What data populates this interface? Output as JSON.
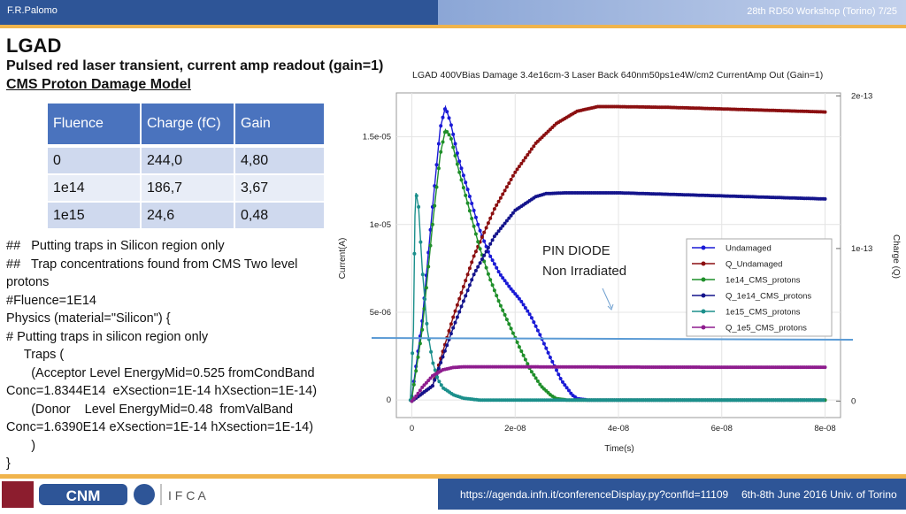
{
  "header": {
    "author": "F.R.Palomo",
    "page_info": "28th RD50 Workshop (Torino) 7/25"
  },
  "slide": {
    "title": "LGAD",
    "subtitle": "Pulsed red laser transient, current amp readout (gain=1)",
    "subtitle2": "CMS Proton Damage Model"
  },
  "table": {
    "headers": [
      "Fluence",
      "Charge (fC)",
      "Gain"
    ],
    "rows": [
      [
        "0",
        "244,0",
        "4,80"
      ],
      [
        "1e14",
        "186,7",
        "3,67"
      ],
      [
        "1e15",
        "24,6",
        "0,48"
      ]
    ]
  },
  "code_lines": [
    "##   Putting traps in Silicon region only",
    "##   Trap concentrations found from CMS Two level",
    "protons",
    "#Fluence=1E14",
    "Physics (material=\"Silicon\") {",
    "# Putting traps in silicon region only",
    "     Traps (",
    "       (Acceptor Level EnergyMid=0.525 fromCondBand",
    "Conc=1.8344E14  eXsection=1E-14 hXsection=1E-14)",
    "       (Donor    Level EnergyMid=0.48  fromValBand",
    "Conc=1.6390E14 eXsection=1E-14 hXsection=1E-14)",
    "       )",
    "}"
  ],
  "footer": {
    "url": "https://agenda.infn.it/conferenceDisplay.py?confId=11109",
    "date": "6th-8th June  2016  Univ. of Torino",
    "logo_text": "CNM"
  },
  "annotation": {
    "line1": "PIN DIODE",
    "line2": "Non  Irradiated"
  },
  "chart_data": {
    "type": "line",
    "title": "LGAD 400VBias Damage 3.4e16cm-3 Laser Back 640nm50ps1e4W/cm2 CurrentAmp Out (Gain=1)",
    "xlabel": "Time(s)",
    "ylabel": "Current(A)",
    "y2label": "Charge (Q)",
    "xlim": [
      -3e-09,
      8.3e-08
    ],
    "ylim": [
      -1e-06,
      1.75e-05
    ],
    "y2lim": [
      -1.08e-14,
      2.02e-13
    ],
    "x_ticks": [
      0,
      2e-08,
      4e-08,
      6e-08,
      8e-08
    ],
    "x_tick_labels": [
      "0",
      "2e-08",
      "4e-08",
      "6e-08",
      "8e-08"
    ],
    "y_ticks": [
      0,
      5e-06,
      1e-05,
      1.5e-05
    ],
    "y_tick_labels": [
      "0",
      "5e-06",
      "1e-05",
      "1.5e-05"
    ],
    "y2_ticks": [
      0,
      1e-13,
      2e-13
    ],
    "y2_tick_labels": [
      "0",
      "1e-13",
      "2e-13"
    ],
    "series": [
      {
        "name": "Undamaged",
        "axis": "left",
        "color": "#1a1ad6",
        "x": [
          0,
          2e-09,
          4e-09,
          5.5e-09,
          6.5e-09,
          7.5e-09,
          9e-09,
          1.1e-08,
          1.3e-08,
          1.5e-08,
          1.7e-08,
          1.9e-08,
          2.1e-08,
          2.3e-08,
          2.5e-08,
          2.7e-08,
          2.9e-08,
          3.1e-08,
          3.2e-08,
          3.4e-08,
          8e-08
        ],
        "values": [
          2e-07,
          4.5e-06,
          1.1e-05,
          1.55e-05,
          1.67e-05,
          1.58e-05,
          1.38e-05,
          1.18e-05,
          9.8e-06,
          8.3e-06,
          7.2e-06,
          6.4e-06,
          5.7e-06,
          4.8e-06,
          3.6e-06,
          2.3e-06,
          1.1e-06,
          3e-07,
          8e-08,
          0,
          0
        ]
      },
      {
        "name": "Q_Undamaged",
        "axis": "right",
        "color": "#8b0f10",
        "x": [
          0,
          4e-09,
          8e-09,
          1.2e-08,
          1.6e-08,
          2e-08,
          2.4e-08,
          2.8e-08,
          3.2e-08,
          3.6e-08,
          4e-08,
          5e-08,
          6e-08,
          7e-08,
          8e-08
        ],
        "values": [
          0,
          1e-14,
          5.5e-14,
          9.5e-14,
          1.26e-13,
          1.5e-13,
          1.69e-13,
          1.82e-13,
          1.9e-13,
          1.93e-13,
          1.93e-13,
          1.925e-13,
          1.915e-13,
          1.905e-13,
          1.895e-13
        ]
      },
      {
        "name": "1e14_CMS_protons",
        "axis": "left",
        "color": "#1f8f2a",
        "x": [
          0,
          2e-09,
          4e-09,
          5.5e-09,
          6.5e-09,
          7.5e-09,
          9e-09,
          1.1e-08,
          1.3e-08,
          1.5e-08,
          1.7e-08,
          1.9e-08,
          2.1e-08,
          2.3e-08,
          2.5e-08,
          2.7e-08,
          2.8e-08,
          3e-08,
          8e-08
        ],
        "values": [
          1e-07,
          4e-06,
          1e-05,
          1.4e-05,
          1.54e-05,
          1.5e-05,
          1.32e-05,
          1.1e-05,
          8.8e-06,
          7e-06,
          5.5e-06,
          4.2e-06,
          2.9e-06,
          1.7e-06,
          8e-07,
          2.5e-07,
          8e-08,
          0,
          0
        ]
      },
      {
        "name": "Q_1e14_CMS_protons",
        "axis": "right",
        "color": "#14148c",
        "x": [
          0,
          4e-09,
          8e-09,
          1.2e-08,
          1.6e-08,
          2e-08,
          2.4e-08,
          2.6e-08,
          3e-08,
          4e-08,
          5e-08,
          6e-08,
          7e-08,
          8e-08
        ],
        "values": [
          0,
          1e-14,
          4.8e-14,
          8.3e-14,
          1.08e-13,
          1.25e-13,
          1.34e-13,
          1.36e-13,
          1.365e-13,
          1.365e-13,
          1.355e-13,
          1.345e-13,
          1.335e-13,
          1.325e-13
        ]
      },
      {
        "name": "1e15_CMS_protons",
        "axis": "left",
        "color": "#1b8f8b",
        "x": [
          -3e-10,
          3e-10,
          6e-10,
          8e-10,
          1.3e-09,
          2e-09,
          3e-09,
          4e-09,
          5e-09,
          6e-09,
          8e-09,
          1e-08,
          1.3e-08,
          8e-08
        ],
        "values": [
          0,
          4e-06,
          1.05e-05,
          1.18e-05,
          1.1e-05,
          7.5e-06,
          4e-06,
          2.2e-06,
          1.2e-06,
          7e-07,
          3e-07,
          1e-07,
          0,
          0
        ]
      },
      {
        "name": "Q_1e5_CMS_protons",
        "axis": "right",
        "color": "#8e1c8e",
        "x": [
          0,
          1e-09,
          2e-09,
          4e-09,
          6e-09,
          8e-09,
          1e-08,
          1.5e-08,
          2e-08,
          4e-08,
          6e-08,
          8e-08
        ],
        "values": [
          0,
          4e-15,
          9e-15,
          1.65e-14,
          2.05e-14,
          2.2e-14,
          2.25e-14,
          2.25e-14,
          2.25e-14,
          2.23e-14,
          2.22e-14,
          2.22e-14
        ]
      }
    ]
  }
}
